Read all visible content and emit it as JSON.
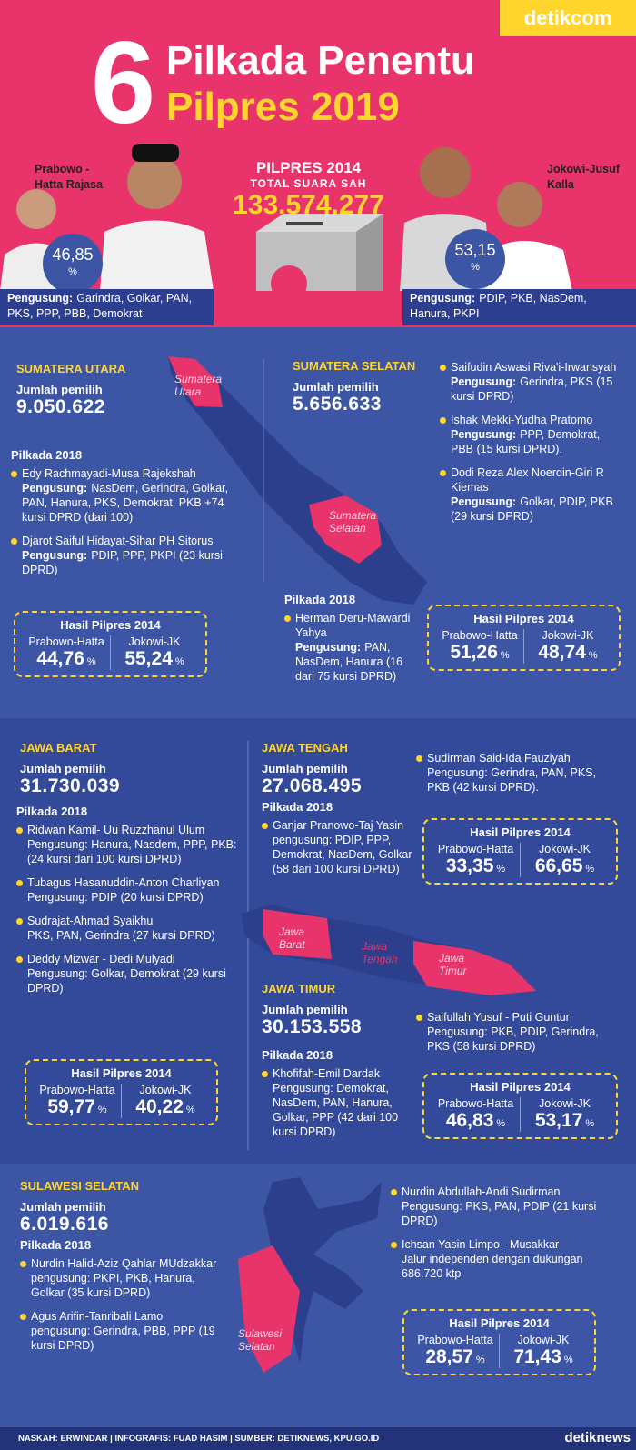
{
  "header": {
    "brand": "detikcom",
    "number": "6",
    "title_line1": "Pilkada Penentu",
    "title_line2": "Pilpres 2019"
  },
  "pilpres": {
    "left": {
      "name": "Prabowo - Hatta Rajasa",
      "percent": "46,85",
      "unit": "%",
      "backers_label": "Pengusung:",
      "backers": "Garindra, Golkar, PAN, PKS, PPP, PBB, Demokrat"
    },
    "center": {
      "title": "PILPRES 2014",
      "subtitle": "TOTAL SUARA SAH",
      "total": "133.574.277"
    },
    "right": {
      "name": "Jokowi-Jusuf Kalla",
      "percent": "53,15",
      "unit": "%",
      "backers_label": "Pengusung:",
      "backers": "PDIP, PKB, NasDem, Hanura, PKPI"
    }
  },
  "regions": [
    {
      "name": "SUMATERA UTARA",
      "map_label": "Sumatera Utara",
      "voters_label": "Jumlah pemilih",
      "voters": "9.050.622",
      "pilkada_label": "Pilkada 2018",
      "candidates": [
        {
          "name": "Edy Rachmayadi-Musa Rajekshah",
          "label": "Pengusung:",
          "detail": "NasDem, Gerindra, Golkar, PAN, Hanura, PKS, Demokrat, PKB +74 kursi DPRD (dari 100)"
        },
        {
          "name": "Djarot Saiful Hidayat-Sihar PH Sitorus",
          "label": "Pengusung:",
          "detail": "PDIP, PPP, PKPI (23 kursi DPRD)"
        }
      ],
      "result": {
        "title": "Hasil Pilpres 2014",
        "left_name": "Prabowo-Hatta",
        "left_value": "44,76",
        "right_name": "Jokowi-JK",
        "right_value": "55,24",
        "unit": "%"
      }
    },
    {
      "name": "SUMATERA SELATAN",
      "map_label": "Sumatera Selatan",
      "voters_label": "Jumlah pemilih",
      "voters": "5.656.633",
      "pilkada_label": "Pilkada 2018",
      "candidates": [
        {
          "name": "Herman Deru-Mawardi Yahya",
          "label": "Pengusung:",
          "detail": "PAN, NasDem, Hanura (16 dari 75 kursi DPRD)"
        },
        {
          "name": "Saifudin Aswasi Riva'i-Irwansyah",
          "label": "Pengusung:",
          "detail": "Gerindra, PKS (15 kursi DPRD)"
        },
        {
          "name": "Ishak Mekki-Yudha Pratomo",
          "label": "Pengusung:",
          "detail": "PPP, Demokrat, PBB (15 kursi DPRD)."
        },
        {
          "name": "Dodi Reza Alex Noerdin-Giri R Kiemas",
          "label": "Pengusung:",
          "detail": "Golkar, PDIP, PKB (29 kursi DPRD)"
        }
      ],
      "result": {
        "title": "Hasil Pilpres 2014",
        "left_name": "Prabowo-Hatta",
        "left_value": "51,26",
        "right_name": "Jokowi-JK",
        "right_value": "48,74",
        "unit": "%"
      }
    },
    {
      "name": "JAWA BARAT",
      "map_label": "Jawa Barat",
      "voters_label": "Jumlah pemilih",
      "voters": "31.730.039",
      "pilkada_label": "Pilkada 2018",
      "candidates": [
        {
          "name": "Ridwan Kamil- Uu Ruzzhanul Ulum",
          "detail": "Pengusung: Hanura, Nasdem, PPP, PKB: (24 kursi dari 100 kursi DPRD)"
        },
        {
          "name": "Tubagus Hasanuddin-Anton Charliyan",
          "detail": "Pengusung: PDIP (20 kursi DPRD)"
        },
        {
          "name": "Sudrajat-Ahmad Syaikhu",
          "detail": "PKS, PAN, Gerindra (27 kursi DPRD)"
        },
        {
          "name": "Deddy Mizwar - Dedi Mulyadi",
          "detail": "Pengusung: Golkar, Demokrat (29 kursi DPRD)"
        }
      ],
      "result": {
        "title": "Hasil Pilpres 2014",
        "left_name": "Prabowo-Hatta",
        "left_value": "59,77",
        "right_name": "Jokowi-JK",
        "right_value": "40,22",
        "unit": "%"
      }
    },
    {
      "name": "JAWA TENGAH",
      "map_label": "Jawa Tengah",
      "voters_label": "Jumlah pemilih",
      "voters": "27.068.495",
      "pilkada_label": "Pilkada 2018",
      "candidates": [
        {
          "name": "Ganjar Pranowo-Taj Yasin",
          "detail": "pengusung: PDIP, PPP, Demokrat, NasDem, Golkar (58 dari 100 kursi DPRD)"
        },
        {
          "name": "Sudirman Said-Ida Fauziyah",
          "detail": "Pengusung: Gerindra, PAN, PKS, PKB (42 kursi DPRD)."
        }
      ],
      "result": {
        "title": "Hasil Pilpres 2014",
        "left_name": "Prabowo-Hatta",
        "left_value": "33,35",
        "right_name": "Jokowi-JK",
        "right_value": "66,65",
        "unit": "%"
      }
    },
    {
      "name": "JAWA TIMUR",
      "map_label": "Jawa Timur",
      "voters_label": "Jumlah pemilih",
      "voters": "30.153.558",
      "pilkada_label": "Pilkada 2018",
      "candidates": [
        {
          "name": "Khofifah-Emil Dardak",
          "detail": "Pengusung: Demokrat, NasDem, PAN, Hanura, Golkar, PPP (42 dari 100 kursi DPRD)"
        },
        {
          "name": "Saifullah Yusuf - Puti Guntur",
          "detail": "Pengusung: PKB, PDIP, Gerindra, PKS (58 kursi DPRD)"
        }
      ],
      "result": {
        "title": "Hasil Pilpres 2014",
        "left_name": "Prabowo-Hatta",
        "left_value": "46,83",
        "right_name": "Jokowi-JK",
        "right_value": "53,17",
        "unit": "%"
      }
    },
    {
      "name": "SULAWESI SELATAN",
      "map_label": "Sulawesi Selatan",
      "voters_label": "Jumlah pemilih",
      "voters": "6.019.616",
      "pilkada_label": "Pilkada 2018",
      "candidates": [
        {
          "name": "Nurdin Halid-Aziz Qahlar MUdzakkar",
          "detail": "pengusung: PKPI, PKB, Hanura, Golkar (35 kursi DPRD)"
        },
        {
          "name": "Agus Arifin-Tanribali Lamo",
          "detail": "pengusung: Gerindra, PBB, PPP (19 kursi DPRD)"
        },
        {
          "name": "Nurdin Abdullah-Andi Sudirman",
          "detail": "Pengusung: PKS, PAN, PDIP (21 kursi DPRD)"
        },
        {
          "name": "Ichsan Yasin Limpo - Musakkar",
          "detail": "Jalur independen dengan dukungan 686.720 ktp"
        }
      ],
      "result": {
        "title": "Hasil Pilpres 2014",
        "left_name": "Prabowo-Hatta",
        "left_value": "28,57",
        "right_name": "Jokowi-JK",
        "right_value": "71,43",
        "unit": "%"
      }
    }
  ],
  "footer": {
    "credits": "NASKAH: ERWINDAR | INFOGRAFIS: FUAD HASIM | SUMBER: DETIKNEWS, KPU.GO.ID",
    "brand": "detiknews"
  }
}
